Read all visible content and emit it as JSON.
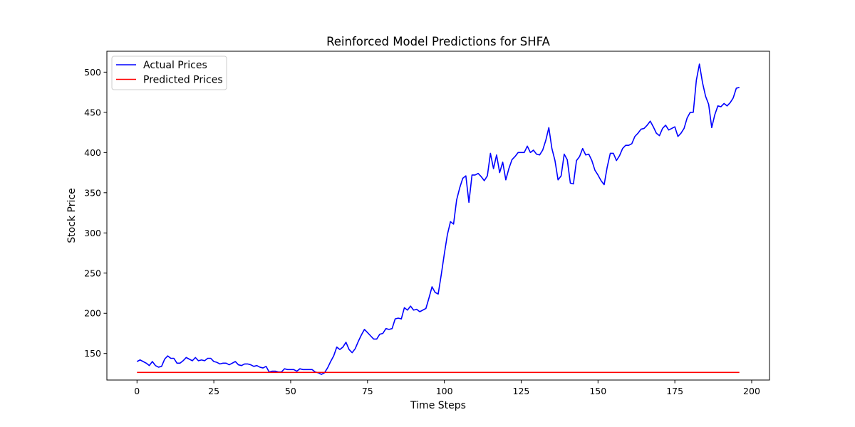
{
  "chart_data": {
    "type": "line",
    "title": "Reinforced Model Predictions for SHFA",
    "xlabel": "Time Steps",
    "ylabel": "Stock Price",
    "xlim": [
      -9.8,
      205.8
    ],
    "ylim": [
      117,
      526
    ],
    "xticks": [
      0,
      25,
      50,
      75,
      100,
      125,
      150,
      175,
      200
    ],
    "yticks": [
      150,
      200,
      250,
      300,
      350,
      400,
      450,
      500
    ],
    "grid": false,
    "legend_position": "upper-left",
    "series": [
      {
        "name": "Actual Prices",
        "color": "#0000ff",
        "points": [
          [
            0,
            140
          ],
          [
            1,
            142
          ],
          [
            2,
            140
          ],
          [
            3,
            138
          ],
          [
            4,
            135
          ],
          [
            5,
            140
          ],
          [
            6,
            135
          ],
          [
            7,
            133
          ],
          [
            8,
            134
          ],
          [
            9,
            143
          ],
          [
            10,
            147
          ],
          [
            11,
            144
          ],
          [
            12,
            144
          ],
          [
            13,
            138
          ],
          [
            14,
            138
          ],
          [
            15,
            141
          ],
          [
            16,
            145
          ],
          [
            17,
            143
          ],
          [
            18,
            141
          ],
          [
            19,
            145
          ],
          [
            20,
            141
          ],
          [
            21,
            142
          ],
          [
            22,
            141
          ],
          [
            23,
            144
          ],
          [
            24,
            144
          ],
          [
            25,
            140
          ],
          [
            26,
            139
          ],
          [
            27,
            137
          ],
          [
            28,
            138
          ],
          [
            29,
            138
          ],
          [
            30,
            136
          ],
          [
            31,
            138
          ],
          [
            32,
            140
          ],
          [
            33,
            136
          ],
          [
            34,
            135
          ],
          [
            35,
            137
          ],
          [
            36,
            137
          ],
          [
            37,
            136
          ],
          [
            38,
            134
          ],
          [
            39,
            135
          ],
          [
            40,
            133
          ],
          [
            41,
            132
          ],
          [
            42,
            134
          ],
          [
            43,
            127
          ],
          [
            44,
            128
          ],
          [
            45,
            128
          ],
          [
            46,
            127
          ],
          [
            47,
            127
          ],
          [
            48,
            131
          ],
          [
            49,
            130
          ],
          [
            50,
            130
          ],
          [
            51,
            130
          ],
          [
            52,
            128
          ],
          [
            53,
            131
          ],
          [
            54,
            130
          ],
          [
            55,
            130
          ],
          [
            56,
            130
          ],
          [
            57,
            130
          ],
          [
            58,
            127
          ],
          [
            59,
            126
          ],
          [
            60,
            124
          ],
          [
            61,
            126
          ],
          [
            62,
            132
          ],
          [
            63,
            140
          ],
          [
            64,
            147
          ],
          [
            65,
            158
          ],
          [
            66,
            155
          ],
          [
            67,
            158
          ],
          [
            68,
            164
          ],
          [
            69,
            155
          ],
          [
            70,
            151
          ],
          [
            71,
            156
          ],
          [
            72,
            165
          ],
          [
            73,
            173
          ],
          [
            74,
            180
          ],
          [
            75,
            176
          ],
          [
            76,
            172
          ],
          [
            77,
            168
          ],
          [
            78,
            168
          ],
          [
            79,
            174
          ],
          [
            80,
            175
          ],
          [
            81,
            181
          ],
          [
            82,
            180
          ],
          [
            83,
            181
          ],
          [
            84,
            193
          ],
          [
            85,
            194
          ],
          [
            86,
            193
          ],
          [
            87,
            207
          ],
          [
            88,
            204
          ],
          [
            89,
            209
          ],
          [
            90,
            204
          ],
          [
            91,
            205
          ],
          [
            92,
            202
          ],
          [
            93,
            204
          ],
          [
            94,
            206
          ],
          [
            95,
            219
          ],
          [
            96,
            233
          ],
          [
            97,
            226
          ],
          [
            98,
            224
          ],
          [
            99,
            248
          ],
          [
            100,
            274
          ],
          [
            101,
            298
          ],
          [
            102,
            314
          ],
          [
            103,
            311
          ],
          [
            104,
            341
          ],
          [
            105,
            356
          ],
          [
            106,
            368
          ],
          [
            107,
            371
          ],
          [
            108,
            338
          ],
          [
            109,
            372
          ],
          [
            110,
            372
          ],
          [
            111,
            374
          ],
          [
            112,
            370
          ],
          [
            113,
            365
          ],
          [
            114,
            371
          ],
          [
            115,
            399
          ],
          [
            116,
            380
          ],
          [
            117,
            397
          ],
          [
            118,
            375
          ],
          [
            119,
            388
          ],
          [
            120,
            366
          ],
          [
            121,
            380
          ],
          [
            122,
            391
          ],
          [
            123,
            395
          ],
          [
            124,
            400
          ],
          [
            125,
            400
          ],
          [
            126,
            400
          ],
          [
            127,
            408
          ],
          [
            128,
            400
          ],
          [
            129,
            403
          ],
          [
            130,
            398
          ],
          [
            131,
            397
          ],
          [
            132,
            403
          ],
          [
            133,
            415
          ],
          [
            134,
            431
          ],
          [
            135,
            405
          ],
          [
            136,
            390
          ],
          [
            137,
            366
          ],
          [
            138,
            371
          ],
          [
            139,
            398
          ],
          [
            140,
            391
          ],
          [
            141,
            362
          ],
          [
            142,
            361
          ],
          [
            143,
            390
          ],
          [
            144,
            395
          ],
          [
            145,
            405
          ],
          [
            146,
            397
          ],
          [
            147,
            398
          ],
          [
            148,
            390
          ],
          [
            149,
            378
          ],
          [
            150,
            372
          ],
          [
            151,
            365
          ],
          [
            152,
            360
          ],
          [
            153,
            382
          ],
          [
            154,
            399
          ],
          [
            155,
            399
          ],
          [
            156,
            390
          ],
          [
            157,
            396
          ],
          [
            158,
            405
          ],
          [
            159,
            409
          ],
          [
            160,
            409
          ],
          [
            161,
            411
          ],
          [
            162,
            420
          ],
          [
            163,
            424
          ],
          [
            164,
            429
          ],
          [
            165,
            430
          ],
          [
            166,
            434
          ],
          [
            167,
            439
          ],
          [
            168,
            432
          ],
          [
            169,
            424
          ],
          [
            170,
            421
          ],
          [
            171,
            430
          ],
          [
            172,
            434
          ],
          [
            173,
            428
          ],
          [
            174,
            430
          ],
          [
            175,
            432
          ],
          [
            176,
            420
          ],
          [
            177,
            424
          ],
          [
            178,
            430
          ],
          [
            179,
            443
          ],
          [
            180,
            450
          ],
          [
            181,
            450
          ],
          [
            182,
            490
          ],
          [
            183,
            510
          ],
          [
            184,
            487
          ],
          [
            185,
            470
          ],
          [
            186,
            460
          ],
          [
            187,
            431
          ],
          [
            188,
            447
          ],
          [
            189,
            458
          ],
          [
            190,
            457
          ],
          [
            191,
            461
          ],
          [
            192,
            458
          ],
          [
            193,
            462
          ],
          [
            194,
            468
          ],
          [
            195,
            480
          ],
          [
            196,
            481
          ]
        ]
      },
      {
        "name": "Predicted Prices",
        "color": "#ff0000",
        "points": [
          [
            0,
            126.5
          ],
          [
            196,
            126.5
          ]
        ]
      }
    ]
  }
}
